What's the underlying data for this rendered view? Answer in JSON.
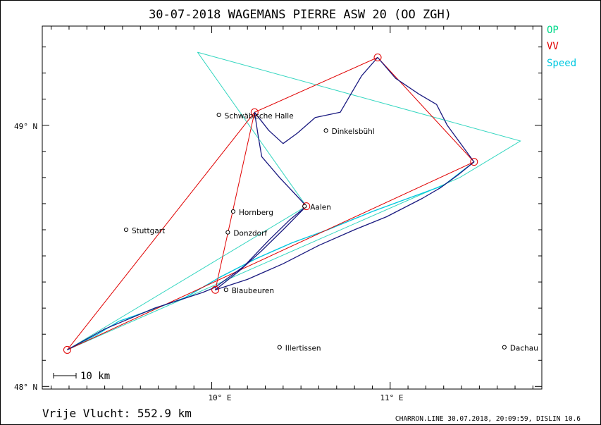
{
  "title": "30-07-2018   WAGEMANS PIERRE   ASW 20 (OO ZGH)",
  "legend": [
    {
      "label": "OP",
      "color": "#00d98a"
    },
    {
      "label": "VV",
      "color": "#e00000"
    },
    {
      "label": "Speed",
      "color": "#00c8e0"
    }
  ],
  "lat_labels": [
    "49° N",
    "48° N"
  ],
  "lon_labels": [
    "10° E",
    "11° E"
  ],
  "scale_label": "10 km",
  "footer_left": "Vrije Vlucht:  552.9 km",
  "footer_right": "CHARRON.LINE 30.07.2018, 20:09:59, DISLIN 10.6",
  "colors": {
    "track": "#1a1a80",
    "op": "#33d6c0",
    "vv": "#e00000",
    "speed": "#00c8e0"
  },
  "map_extent": {
    "lon": [
      9.05,
      11.85
    ],
    "lat": [
      47.99,
      49.38
    ]
  },
  "places": [
    {
      "name": "Schwäbische Halle",
      "lon": 10.04,
      "lat": 49.04
    },
    {
      "name": "Dinkelsbühl",
      "lon": 10.64,
      "lat": 48.98
    },
    {
      "name": "Hornberg",
      "lon": 10.12,
      "lat": 48.67
    },
    {
      "name": "Stuttgart",
      "lon": 9.52,
      "lat": 48.6
    },
    {
      "name": "Donzdorf",
      "lon": 10.09,
      "lat": 48.59
    },
    {
      "name": "Aalen",
      "lon": 10.52,
      "lat": 48.69
    },
    {
      "name": "Blaubeuren",
      "lon": 10.08,
      "lat": 48.37
    },
    {
      "name": "Illertissen",
      "lon": 10.38,
      "lat": 48.15
    },
    {
      "name": "Dachau",
      "lon": 11.64,
      "lat": 48.15
    }
  ],
  "vv_turnpoints": [
    {
      "lon": 9.19,
      "lat": 48.14
    },
    {
      "lon": 10.24,
      "lat": 49.05
    },
    {
      "lon": 10.93,
      "lat": 49.26
    },
    {
      "lon": 11.47,
      "lat": 48.86
    },
    {
      "lon": 9.19,
      "lat": 48.14
    }
  ],
  "vv_markers": [
    {
      "lon": 9.19,
      "lat": 48.14
    },
    {
      "lon": 10.24,
      "lat": 49.05
    },
    {
      "lon": 10.93,
      "lat": 49.26
    },
    {
      "lon": 11.47,
      "lat": 48.86
    },
    {
      "lon": 10.02,
      "lat": 48.37
    },
    {
      "lon": 10.53,
      "lat": 48.69
    }
  ],
  "vv_extra": [
    {
      "lon": 10.02,
      "lat": 48.37
    },
    {
      "lon": 10.24,
      "lat": 49.05
    }
  ],
  "op_triangle": [
    {
      "lon": 9.92,
      "lat": 49.28
    },
    {
      "lon": 11.73,
      "lat": 48.94
    },
    {
      "lon": 11.39,
      "lat": 48.8
    },
    {
      "lon": 9.19,
      "lat": 48.14
    },
    {
      "lon": 10.53,
      "lat": 48.69
    },
    {
      "lon": 9.92,
      "lat": 49.28
    }
  ],
  "speed_track": [
    {
      "lon": 9.19,
      "lat": 48.14
    },
    {
      "lon": 9.36,
      "lat": 48.2
    },
    {
      "lon": 9.48,
      "lat": 48.25
    },
    {
      "lon": 9.65,
      "lat": 48.29
    },
    {
      "lon": 9.85,
      "lat": 48.34
    },
    {
      "lon": 10.05,
      "lat": 48.42
    },
    {
      "lon": 10.25,
      "lat": 48.49
    },
    {
      "lon": 10.45,
      "lat": 48.55
    },
    {
      "lon": 10.65,
      "lat": 48.6
    },
    {
      "lon": 10.9,
      "lat": 48.67
    },
    {
      "lon": 11.1,
      "lat": 48.72
    },
    {
      "lon": 11.3,
      "lat": 48.77
    },
    {
      "lon": 11.47,
      "lat": 48.86
    }
  ],
  "flight_track": [
    {
      "lon": 9.19,
      "lat": 48.14
    },
    {
      "lon": 9.4,
      "lat": 48.22
    },
    {
      "lon": 9.68,
      "lat": 48.3
    },
    {
      "lon": 9.95,
      "lat": 48.36
    },
    {
      "lon": 10.02,
      "lat": 48.38
    },
    {
      "lon": 10.18,
      "lat": 48.46
    },
    {
      "lon": 10.32,
      "lat": 48.56
    },
    {
      "lon": 10.44,
      "lat": 48.64
    },
    {
      "lon": 10.53,
      "lat": 48.69
    },
    {
      "lon": 10.49,
      "lat": 48.72
    },
    {
      "lon": 10.38,
      "lat": 48.8
    },
    {
      "lon": 10.28,
      "lat": 48.88
    },
    {
      "lon": 10.26,
      "lat": 48.96
    },
    {
      "lon": 10.24,
      "lat": 49.05
    },
    {
      "lon": 10.32,
      "lat": 48.98
    },
    {
      "lon": 10.4,
      "lat": 48.93
    },
    {
      "lon": 10.48,
      "lat": 48.97
    },
    {
      "lon": 10.58,
      "lat": 49.03
    },
    {
      "lon": 10.72,
      "lat": 49.05
    },
    {
      "lon": 10.78,
      "lat": 49.12
    },
    {
      "lon": 10.84,
      "lat": 49.19
    },
    {
      "lon": 10.93,
      "lat": 49.26
    },
    {
      "lon": 11.03,
      "lat": 49.18
    },
    {
      "lon": 11.16,
      "lat": 49.12
    },
    {
      "lon": 11.26,
      "lat": 49.08
    },
    {
      "lon": 11.32,
      "lat": 49.0
    },
    {
      "lon": 11.47,
      "lat": 48.86
    },
    {
      "lon": 11.38,
      "lat": 48.81
    },
    {
      "lon": 11.28,
      "lat": 48.76
    },
    {
      "lon": 11.18,
      "lat": 48.72
    },
    {
      "lon": 10.98,
      "lat": 48.65
    },
    {
      "lon": 10.8,
      "lat": 48.6
    },
    {
      "lon": 10.6,
      "lat": 48.54
    },
    {
      "lon": 10.4,
      "lat": 48.47
    },
    {
      "lon": 10.2,
      "lat": 48.41
    },
    {
      "lon": 10.02,
      "lat": 48.37
    },
    {
      "lon": 10.15,
      "lat": 48.44
    },
    {
      "lon": 10.28,
      "lat": 48.52
    },
    {
      "lon": 10.4,
      "lat": 48.6
    },
    {
      "lon": 10.53,
      "lat": 48.69
    }
  ]
}
